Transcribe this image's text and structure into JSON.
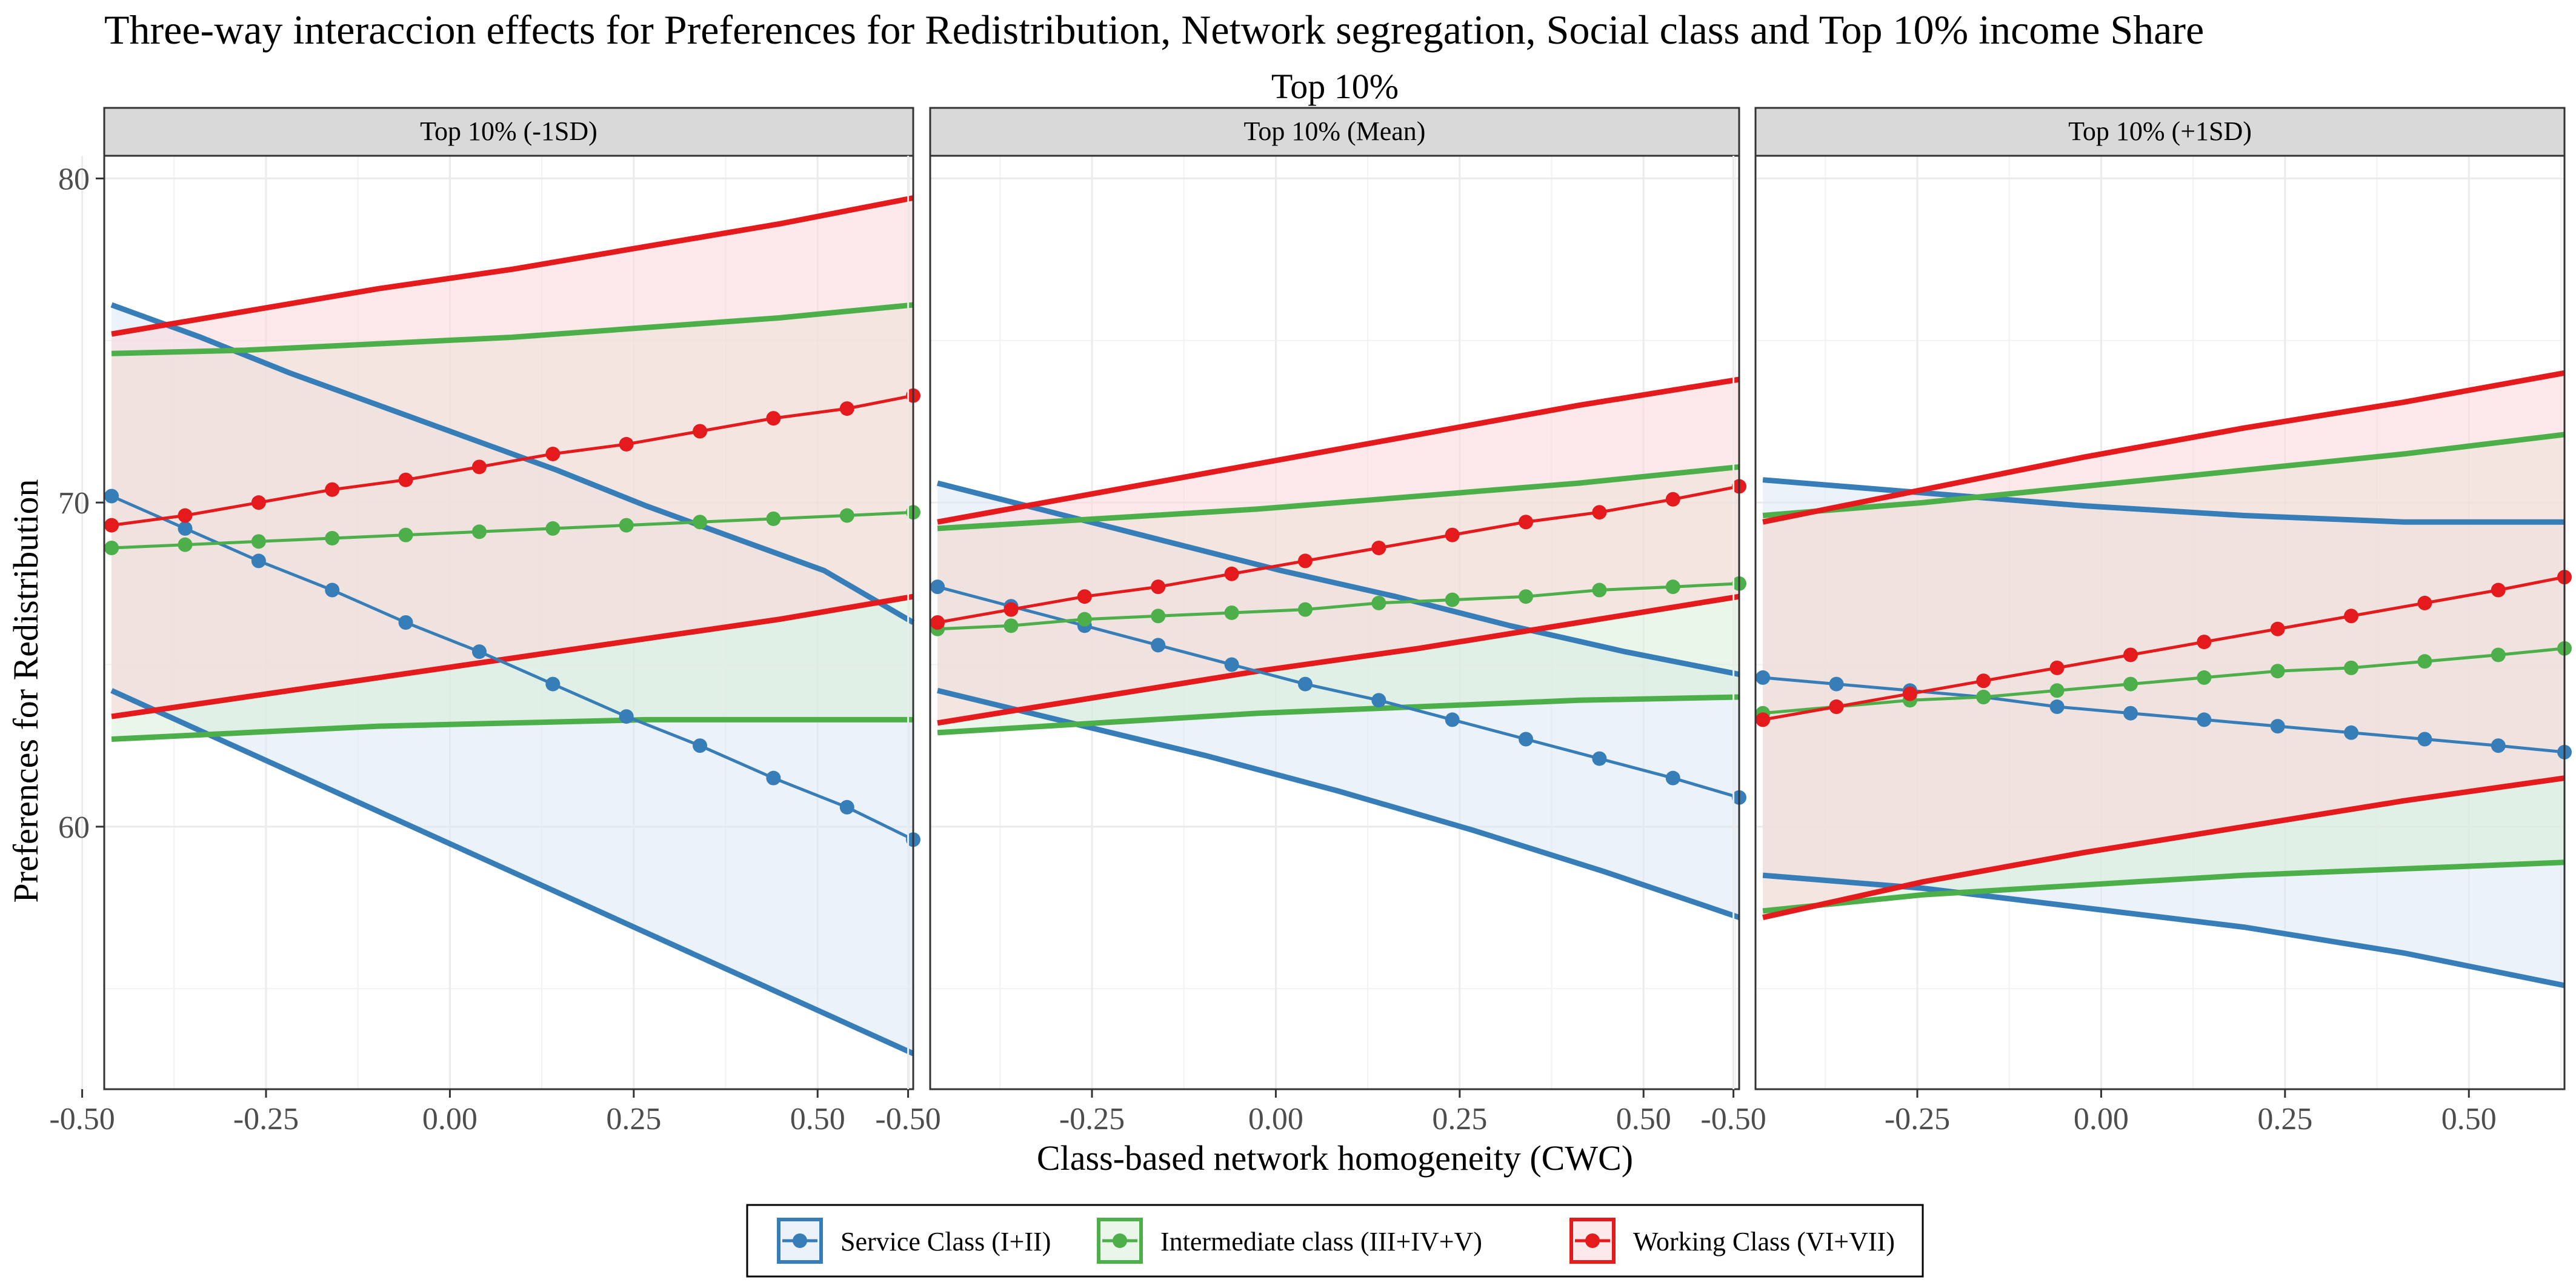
{
  "chart_data": {
    "type": "line",
    "title": "Three-way interaccion effects for Preferences for Redistribution, Network segregation, Social class and Top 10% income Share",
    "facet_title": "Top 10%",
    "xlabel": "Class-based network homogeneity (CWC)",
    "ylabel": "Preferences for Redistribution",
    "xlim": [
      -0.47,
      0.63
    ],
    "ylim": [
      51.9,
      80.7
    ],
    "x_ticks": [
      -0.5,
      -0.25,
      0.0,
      0.25,
      0.5
    ],
    "x_tick_labels": [
      "-0.50",
      "-0.25",
      "0.00",
      "0.25",
      "0.50"
    ],
    "y_ticks": [
      60,
      70,
      80
    ],
    "y_tick_labels": [
      "60",
      "70",
      "80"
    ],
    "grid": true,
    "legend_position": "bottom",
    "legend": [
      {
        "name": "Service Class (I+II)",
        "color": "#377EB8"
      },
      {
        "name": "Intermediate class (III+IV+V)",
        "color": "#4DAF4A"
      },
      {
        "name": "Working Class (VI+VII)",
        "color": "#E41A1C"
      }
    ],
    "x_points": [
      -0.46,
      -0.36,
      -0.26,
      -0.16,
      -0.06,
      0.04,
      0.14,
      0.24,
      0.34,
      0.44,
      0.54,
      0.63
    ],
    "panels": [
      {
        "label": "Top 10% (-1SD)",
        "series": [
          {
            "name": "Service Class (I+II)",
            "color": "#377EB8",
            "values": [
              70.2,
              69.2,
              68.2,
              67.3,
              66.3,
              65.4,
              64.4,
              63.4,
              62.5,
              61.5,
              60.6,
              59.6
            ],
            "lower": [
              64.2,
              62.8,
              61.4,
              60.0,
              58.6,
              57.2,
              55.8,
              54.4,
              53.0
            ],
            "upper": [
              76.1,
              75.1,
              74.0,
              73.0,
              72.0,
              71.0,
              69.9,
              68.9,
              67.9,
              66.3
            ]
          },
          {
            "name": "Intermediate class (III+IV+V)",
            "color": "#4DAF4A",
            "values": [
              68.6,
              68.7,
              68.8,
              68.9,
              69.0,
              69.1,
              69.2,
              69.3,
              69.4,
              69.5,
              69.6,
              69.7
            ],
            "lower": [
              62.7,
              62.9,
              63.1,
              63.2,
              63.3,
              63.3,
              63.3
            ],
            "upper": [
              74.6,
              74.7,
              74.9,
              75.1,
              75.4,
              75.7,
              76.1
            ]
          },
          {
            "name": "Working Class (VI+VII)",
            "color": "#E41A1C",
            "values": [
              69.3,
              69.6,
              70.0,
              70.4,
              70.7,
              71.1,
              71.5,
              71.8,
              72.2,
              72.6,
              72.9,
              73.3
            ],
            "lower": [
              63.4,
              64.0,
              64.6,
              65.2,
              65.8,
              66.4,
              67.1
            ],
            "upper": [
              75.2,
              75.9,
              76.6,
              77.2,
              77.9,
              78.6,
              79.4
            ]
          }
        ]
      },
      {
        "label": "Top 10% (Mean)",
        "series": [
          {
            "name": "Service Class (I+II)",
            "color": "#377EB8",
            "values": [
              67.4,
              66.8,
              66.2,
              65.6,
              65.0,
              64.4,
              63.9,
              63.3,
              62.7,
              62.1,
              61.5,
              60.9
            ],
            "lower": [
              64.2,
              63.2,
              62.2,
              61.1,
              59.9,
              58.6,
              57.2
            ],
            "upper": [
              70.6,
              69.7,
              68.8,
              67.9,
              67.1,
              66.2,
              65.4,
              64.7
            ]
          },
          {
            "name": "Intermediate class (III+IV+V)",
            "color": "#4DAF4A",
            "values": [
              66.1,
              66.2,
              66.4,
              66.5,
              66.6,
              66.7,
              66.9,
              67.0,
              67.1,
              67.3,
              67.4,
              67.5
            ],
            "lower": [
              62.9,
              63.2,
              63.5,
              63.7,
              63.9,
              64.0
            ],
            "upper": [
              69.2,
              69.5,
              69.8,
              70.2,
              70.6,
              71.1
            ]
          },
          {
            "name": "Working Class (VI+VII)",
            "color": "#E41A1C",
            "values": [
              66.3,
              66.7,
              67.1,
              67.4,
              67.8,
              68.2,
              68.6,
              69.0,
              69.4,
              69.7,
              70.1,
              70.5
            ],
            "lower": [
              63.2,
              64.0,
              64.8,
              65.5,
              66.3,
              67.1
            ],
            "upper": [
              69.4,
              70.3,
              71.2,
              72.1,
              73.0,
              73.8
            ]
          }
        ]
      },
      {
        "label": "Top 10% (+1SD)",
        "series": [
          {
            "name": "Service Class (I+II)",
            "color": "#377EB8",
            "values": [
              64.6,
              64.4,
              64.2,
              64.0,
              63.7,
              63.5,
              63.3,
              63.1,
              62.9,
              62.7,
              62.5,
              62.3
            ],
            "lower": [
              58.5,
              58.1,
              57.5,
              56.9,
              56.1,
              55.1
            ],
            "upper": [
              70.7,
              70.3,
              69.9,
              69.6,
              69.4,
              69.4
            ]
          },
          {
            "name": "Intermediate class (III+IV+V)",
            "color": "#4DAF4A",
            "values": [
              63.5,
              63.7,
              63.9,
              64.0,
              64.2,
              64.4,
              64.6,
              64.8,
              64.9,
              65.1,
              65.3,
              65.5
            ],
            "lower": [
              57.4,
              57.9,
              58.2,
              58.5,
              58.7,
              58.9
            ],
            "upper": [
              69.6,
              70.0,
              70.5,
              71.0,
              71.5,
              72.1
            ]
          },
          {
            "name": "Working Class (VI+VII)",
            "color": "#E41A1C",
            "values": [
              63.3,
              63.7,
              64.1,
              64.5,
              64.9,
              65.3,
              65.7,
              66.1,
              66.5,
              66.9,
              67.3,
              67.7
            ],
            "lower": [
              57.2,
              58.3,
              59.2,
              60.0,
              60.8,
              61.5
            ],
            "upper": [
              69.4,
              70.4,
              71.4,
              72.3,
              73.1,
              74.0
            ]
          }
        ]
      }
    ]
  }
}
